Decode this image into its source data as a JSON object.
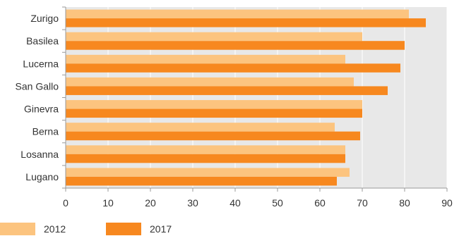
{
  "chart_data": {
    "type": "bar",
    "orientation": "horizontal",
    "categories": [
      "Zurigo",
      "Basilea",
      "Lucerna",
      "San Gallo",
      "Ginevra",
      "Berna",
      "Losanna",
      "Lugano"
    ],
    "series": [
      {
        "name": "2012",
        "color": "#fcc47f",
        "values": [
          81,
          70,
          66,
          68,
          70,
          63.5,
          66,
          67
        ]
      },
      {
        "name": "2017",
        "color": "#f7881f",
        "values": [
          85,
          80,
          79,
          76,
          70,
          69.5,
          66,
          64
        ]
      }
    ],
    "xlim": [
      0,
      90
    ],
    "xticks": [
      0,
      10,
      20,
      30,
      40,
      50,
      60,
      70,
      80,
      90
    ],
    "grid": true,
    "background": "#e8e8e8",
    "gridline_color": "#ffffff",
    "legend_position": "bottom-left",
    "title": "",
    "xlabel": "",
    "ylabel": ""
  }
}
